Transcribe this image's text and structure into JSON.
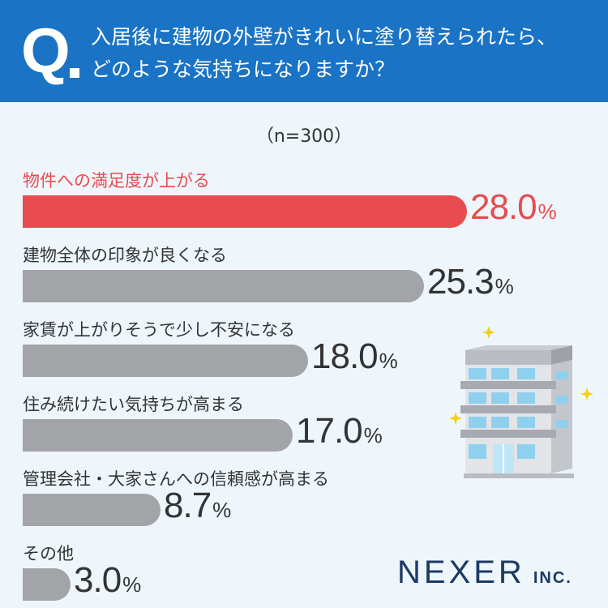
{
  "header": {
    "q_mark": "Q",
    "question_line1": "入居後に建物の外壁がきれいに塗り替えられたら、",
    "question_line2": "どのような気持ちになりますか？"
  },
  "sample_size": "（n=300）",
  "logo": {
    "main": "NEXER",
    "sub": "INC."
  },
  "colors": {
    "header": "#1a73c4",
    "background": "#eef6fc",
    "highlight": "#e84c4f",
    "bar": "#a3a4a8"
  },
  "chart_data": {
    "type": "bar",
    "orientation": "horizontal",
    "categories": [
      "物件への満足度が上がる",
      "建物全体の印象が良くなる",
      "家賃が上がりそうで少し不安になる",
      "住み続けたい気持ちが高まる",
      "管理会社・大家さんへの信頼感が高まる",
      "その他"
    ],
    "values": [
      28.0,
      25.3,
      18.0,
      17.0,
      8.7,
      3.0
    ],
    "value_labels": [
      "28.0",
      "25.3",
      "18.0",
      "17.0",
      "8.7",
      "3.0"
    ],
    "unit": "%",
    "highlight_index": 0
  }
}
